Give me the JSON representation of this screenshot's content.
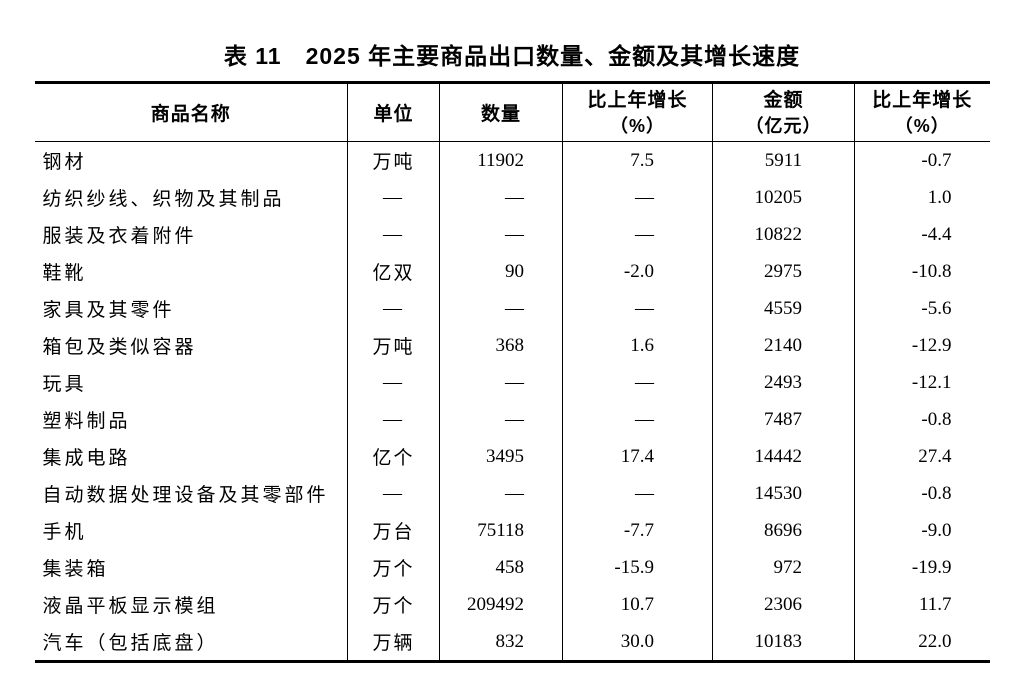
{
  "colors": {
    "text": "#000000",
    "border": "#000000",
    "background": "#ffffff"
  },
  "table": {
    "title": "表 11　2025 年主要商品出口数量、金额及其增长速度",
    "columns": [
      {
        "label": "商品名称",
        "sub": ""
      },
      {
        "label": "单位",
        "sub": ""
      },
      {
        "label": "数量",
        "sub": ""
      },
      {
        "label": "比上年增长",
        "sub": "（%）"
      },
      {
        "label": "金额",
        "sub": "（亿元）"
      },
      {
        "label": "比上年增长",
        "sub": "（%）"
      }
    ],
    "rows": [
      [
        "钢材",
        "万吨",
        "11902",
        "7.5",
        "5911",
        "-0.7"
      ],
      [
        "纺织纱线、织物及其制品",
        "—",
        "—",
        "—",
        "10205",
        "1.0"
      ],
      [
        "服装及衣着附件",
        "—",
        "—",
        "—",
        "10822",
        "-4.4"
      ],
      [
        "鞋靴",
        "亿双",
        "90",
        "-2.0",
        "2975",
        "-10.8"
      ],
      [
        "家具及其零件",
        "—",
        "—",
        "—",
        "4559",
        "-5.6"
      ],
      [
        "箱包及类似容器",
        "万吨",
        "368",
        "1.6",
        "2140",
        "-12.9"
      ],
      [
        "玩具",
        "—",
        "—",
        "—",
        "2493",
        "-12.1"
      ],
      [
        "塑料制品",
        "—",
        "—",
        "—",
        "7487",
        "-0.8"
      ],
      [
        "集成电路",
        "亿个",
        "3495",
        "17.4",
        "14442",
        "27.4"
      ],
      [
        "自动数据处理设备及其零部件",
        "—",
        "—",
        "—",
        "14530",
        "-0.8"
      ],
      [
        "手机",
        "万台",
        "75118",
        "-7.7",
        "8696",
        "-9.0"
      ],
      [
        "集装箱",
        "万个",
        "458",
        "-15.9",
        "972",
        "-19.9"
      ],
      [
        "液晶平板显示模组",
        "万个",
        "209492",
        "10.7",
        "2306",
        "11.7"
      ],
      [
        "汽车（包括底盘）",
        "万辆",
        "832",
        "30.0",
        "10183",
        "22.0"
      ]
    ]
  }
}
